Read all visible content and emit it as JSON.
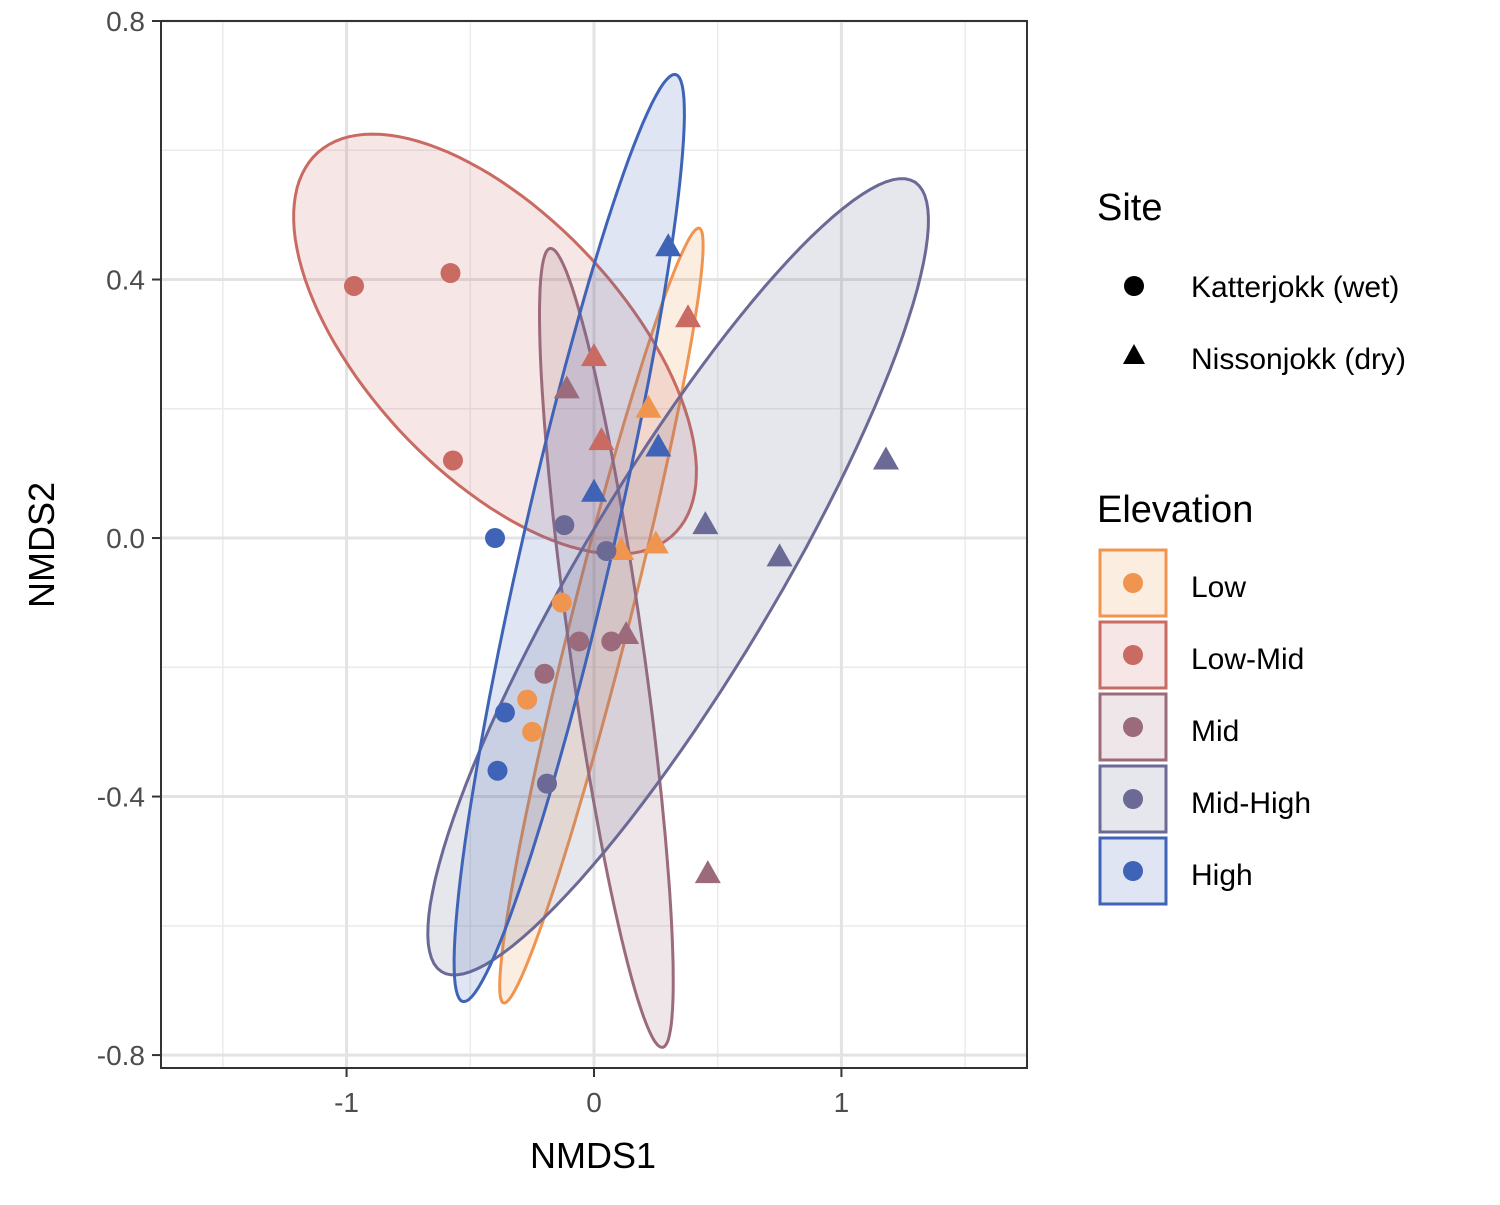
{
  "chart_data": {
    "type": "scatter",
    "xlabel": "NMDS1",
    "ylabel": "NMDS2",
    "xlim": [
      -1.75,
      1.75
    ],
    "ylim": [
      -0.82,
      0.8
    ],
    "x_ticks": [
      -1,
      0,
      1
    ],
    "x_tick_labels": [
      "-1",
      "0",
      "1"
    ],
    "y_ticks": [
      -0.8,
      -0.4,
      0.0,
      0.4,
      0.8
    ],
    "y_tick_labels": [
      "-0.8",
      "-0.4",
      "0.0",
      "0.4",
      "0.8"
    ],
    "grid": true,
    "legend_position": "right",
    "legends": {
      "site": {
        "title": "Site",
        "entries": [
          {
            "label": "Katterjokk (wet)",
            "shape": "circle"
          },
          {
            "label": "Nissonjokk (dry)",
            "shape": "triangle"
          }
        ]
      },
      "elevation": {
        "title": "Elevation",
        "entries": [
          {
            "label": "Low",
            "color": "#F0954F"
          },
          {
            "label": "Low-Mid",
            "color": "#C96B63"
          },
          {
            "label": "Mid",
            "color": "#9B6B7C"
          },
          {
            "label": "Mid-High",
            "color": "#6B6995"
          },
          {
            "label": "High",
            "color": "#3F64B7"
          }
        ]
      }
    },
    "series": [
      {
        "name": "Low",
        "color": "#F0954F",
        "ellipse": {
          "cx": 0.03,
          "cy": -0.12,
          "a": 0.72,
          "b": 0.1,
          "angle_deg": 56
        },
        "points": [
          {
            "x": -0.13,
            "y": -0.1,
            "site": "Katterjokk (wet)"
          },
          {
            "x": -0.27,
            "y": -0.25,
            "site": "Katterjokk (wet)"
          },
          {
            "x": -0.25,
            "y": -0.3,
            "site": "Katterjokk (wet)"
          },
          {
            "x": 0.22,
            "y": 0.2,
            "site": "Nissonjokk (dry)"
          },
          {
            "x": 0.11,
            "y": -0.02,
            "site": "Nissonjokk (dry)"
          },
          {
            "x": 0.25,
            "y": -0.01,
            "site": "Nissonjokk (dry)"
          }
        ]
      },
      {
        "name": "Low-Mid",
        "color": "#C96B63",
        "ellipse": {
          "cx": -0.4,
          "cy": 0.3,
          "a": 0.84,
          "b": 0.25,
          "angle_deg": -15
        },
        "points": [
          {
            "x": -0.97,
            "y": 0.39,
            "site": "Katterjokk (wet)"
          },
          {
            "x": -0.58,
            "y": 0.41,
            "site": "Katterjokk (wet)"
          },
          {
            "x": -0.57,
            "y": 0.12,
            "site": "Katterjokk (wet)"
          },
          {
            "x": 0.38,
            "y": 0.34,
            "site": "Nissonjokk (dry)"
          },
          {
            "x": 0.0,
            "y": 0.28,
            "site": "Nissonjokk (dry)"
          },
          {
            "x": 0.03,
            "y": 0.15,
            "site": "Nissonjokk (dry)"
          }
        ]
      },
      {
        "name": "Mid",
        "color": "#9B6B7C",
        "ellipse": {
          "cx": 0.05,
          "cy": -0.17,
          "a": 0.66,
          "b": 0.14,
          "angle_deg": -69
        },
        "points": [
          {
            "x": -0.06,
            "y": -0.16,
            "site": "Katterjokk (wet)"
          },
          {
            "x": 0.07,
            "y": -0.16,
            "site": "Katterjokk (wet)"
          },
          {
            "x": -0.2,
            "y": -0.21,
            "site": "Katterjokk (wet)"
          },
          {
            "x": -0.11,
            "y": 0.23,
            "site": "Nissonjokk (dry)"
          },
          {
            "x": 0.13,
            "y": -0.15,
            "site": "Nissonjokk (dry)"
          },
          {
            "x": 0.46,
            "y": -0.52,
            "site": "Nissonjokk (dry)"
          }
        ]
      },
      {
        "name": "Mid-High",
        "color": "#6B6995",
        "ellipse": {
          "cx": 0.34,
          "cy": -0.06,
          "a": 1.16,
          "b": 0.24,
          "angle_deg": 30
        },
        "points": [
          {
            "x": -0.12,
            "y": 0.02,
            "site": "Katterjokk (wet)"
          },
          {
            "x": 0.05,
            "y": -0.02,
            "site": "Katterjokk (wet)"
          },
          {
            "x": -0.19,
            "y": -0.38,
            "site": "Katterjokk (wet)"
          },
          {
            "x": 1.18,
            "y": 0.12,
            "site": "Nissonjokk (dry)"
          },
          {
            "x": 0.45,
            "y": 0.02,
            "site": "Nissonjokk (dry)"
          },
          {
            "x": 0.75,
            "y": -0.03,
            "site": "Nissonjokk (dry)"
          }
        ]
      },
      {
        "name": "High",
        "color": "#3F64B7",
        "ellipse": {
          "cx": -0.1,
          "cy": 0.0,
          "a": 0.84,
          "b": 0.16,
          "angle_deg": 58
        },
        "points": [
          {
            "x": -0.4,
            "y": 0.0,
            "site": "Katterjokk (wet)"
          },
          {
            "x": -0.36,
            "y": -0.27,
            "site": "Katterjokk (wet)"
          },
          {
            "x": -0.39,
            "y": -0.36,
            "site": "Katterjokk (wet)"
          },
          {
            "x": 0.3,
            "y": 0.45,
            "site": "Nissonjokk (dry)"
          },
          {
            "x": 0.26,
            "y": 0.14,
            "site": "Nissonjokk (dry)"
          },
          {
            "x": 0.0,
            "y": 0.07,
            "site": "Nissonjokk (dry)"
          }
        ]
      }
    ]
  }
}
